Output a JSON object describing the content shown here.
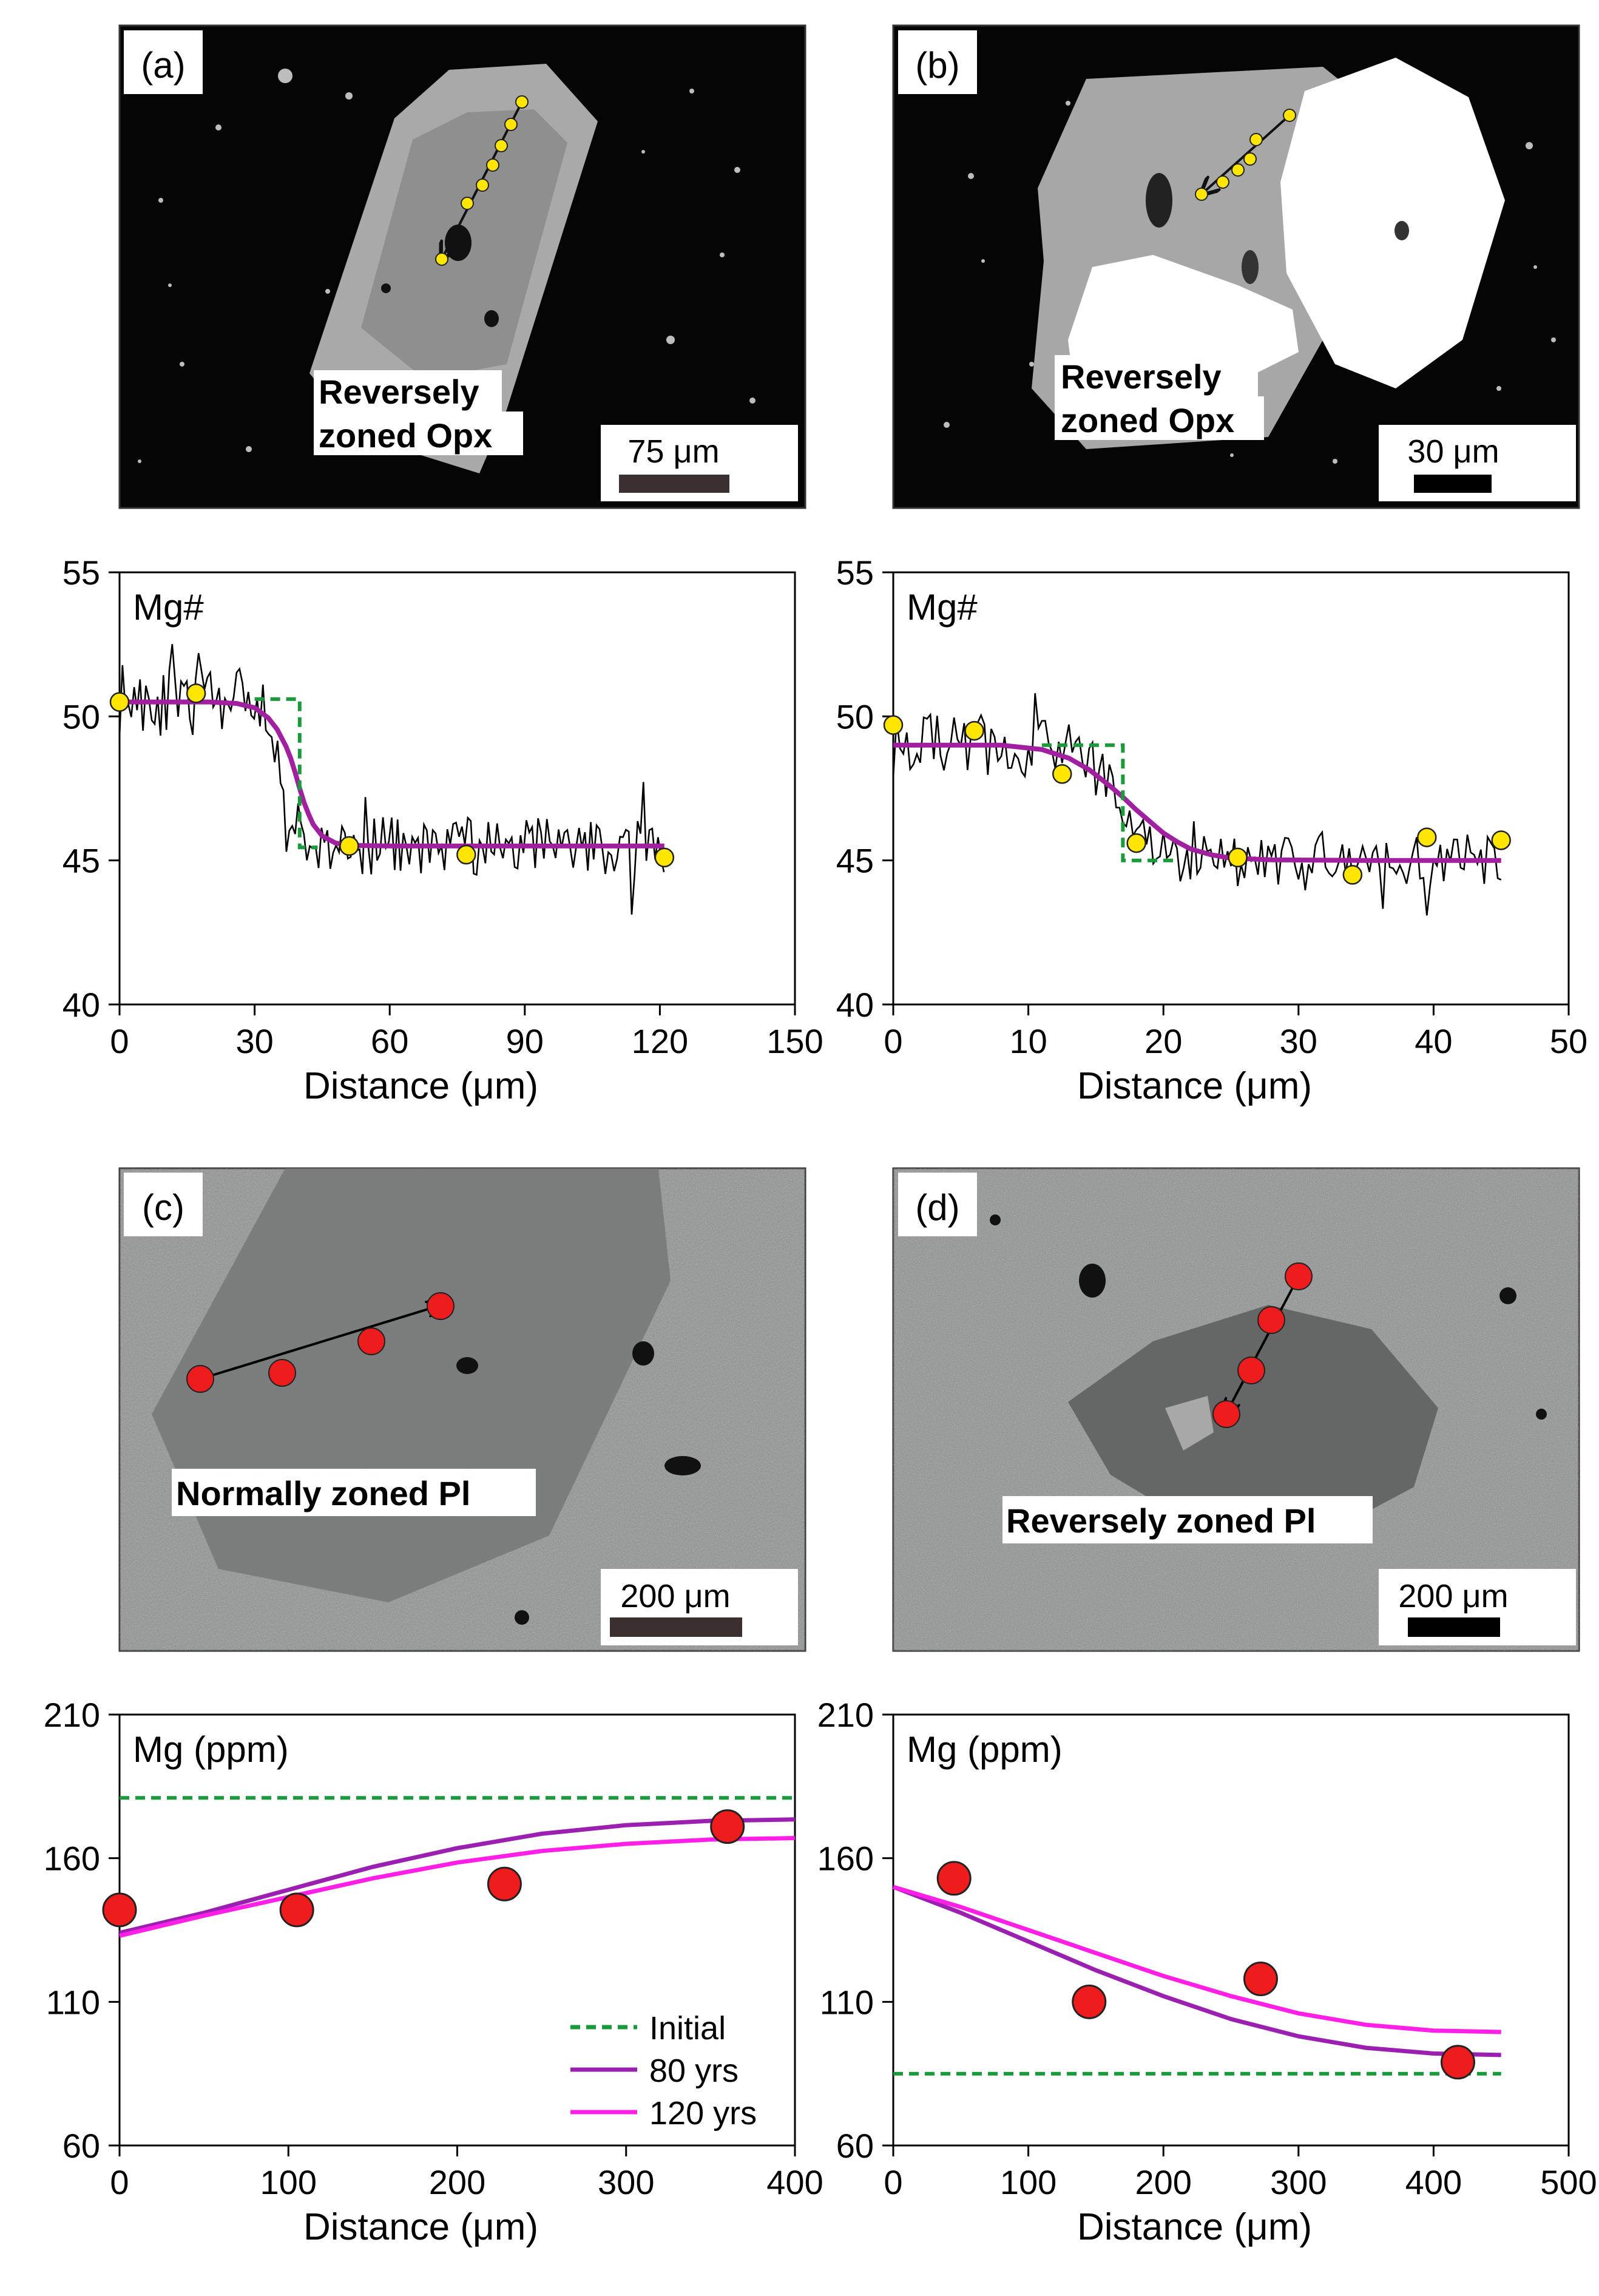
{
  "panels": {
    "a": {
      "letter": "(a)",
      "caption": [
        "Reversely",
        "zoned Opx"
      ],
      "scale": "75 μm"
    },
    "b": {
      "letter": "(b)",
      "caption": [
        "Reversely",
        "zoned Opx"
      ],
      "scale": "30 μm"
    },
    "c": {
      "letter": "(c)",
      "caption": [
        "Normally zoned Pl"
      ],
      "scale": "200 μm"
    },
    "d": {
      "letter": "(d)",
      "caption": [
        "Reversely zoned Pl"
      ],
      "scale": "200 μm"
    }
  },
  "colors": {
    "profile_line": "#000000",
    "fit_magenta": "#a020a0",
    "initial_green": "#1a9a3a",
    "model_80": "#9b1fb0",
    "model_120": "#ff1fe6",
    "point_yellow": "#ffe600",
    "point_red": "#ee1c1c"
  },
  "chart_data": [
    {
      "id": "opx-a",
      "type": "line",
      "title": "Mg#",
      "xlabel": "Distance (μm)",
      "ylabel": "",
      "xlim": [
        0,
        150
      ],
      "ylim": [
        40,
        55
      ],
      "xticks": [
        0,
        30,
        60,
        90,
        120,
        150
      ],
      "yticks": [
        40,
        45,
        50,
        55
      ],
      "grid": false,
      "noise": {
        "x_end": 121,
        "step": 0.65,
        "seed": 11,
        "transition": [
          30,
          42
        ],
        "low_amp": 1.2,
        "high_amp": 1.0,
        "high": 50.5,
        "low": 45.5
      },
      "series": [
        {
          "role": "fit",
          "x": [
            0,
            20,
            26,
            30,
            33,
            35,
            37,
            38,
            39,
            40,
            41,
            42,
            43,
            45,
            48,
            52,
            60,
            80,
            100,
            121
          ],
          "y": [
            50.5,
            50.5,
            50.45,
            50.3,
            49.95,
            49.55,
            48.95,
            48.55,
            48.05,
            47.5,
            47.0,
            46.6,
            46.25,
            45.85,
            45.6,
            45.52,
            45.5,
            45.5,
            45.5,
            45.5
          ]
        },
        {
          "role": "initial",
          "x": [
            30,
            40,
            40,
            44
          ],
          "y": [
            50.6,
            50.6,
            45.45,
            45.45
          ]
        },
        {
          "role": "points",
          "x": [
            0,
            17,
            51,
            77,
            121
          ],
          "y": [
            50.5,
            50.8,
            45.5,
            45.2,
            45.1
          ]
        }
      ]
    },
    {
      "id": "opx-b",
      "type": "line",
      "title": "Mg#",
      "xlabel": "Distance (μm)",
      "ylabel": "",
      "xlim": [
        0,
        50
      ],
      "ylim": [
        40,
        55
      ],
      "xticks": [
        0,
        10,
        20,
        30,
        40,
        50
      ],
      "yticks": [
        40,
        45,
        50,
        55
      ],
      "grid": false,
      "noise": {
        "x_end": 45,
        "step": 0.25,
        "seed": 29,
        "transition": [
          12,
          22
        ],
        "low_amp": 1.1,
        "high_amp": 0.9,
        "high": 49,
        "low": 45
      },
      "series": [
        {
          "role": "fit",
          "x": [
            0,
            8,
            11,
            13,
            14.5,
            16,
            17,
            18,
            19,
            20,
            21,
            22,
            23.5,
            25,
            28,
            35,
            45
          ],
          "y": [
            49.0,
            49.0,
            48.85,
            48.55,
            48.15,
            47.6,
            47.2,
            46.75,
            46.35,
            45.95,
            45.65,
            45.4,
            45.2,
            45.08,
            45.02,
            45.0,
            45.0
          ]
        },
        {
          "role": "initial",
          "x": [
            11,
            17,
            17,
            21
          ],
          "y": [
            49.0,
            49.0,
            45.0,
            45.0
          ]
        },
        {
          "role": "points",
          "x": [
            0,
            6,
            12.5,
            18,
            25.5,
            34,
            39.5,
            45
          ],
          "y": [
            49.7,
            49.5,
            48,
            45.6,
            45.1,
            44.5,
            45.8,
            45.7
          ]
        }
      ]
    },
    {
      "id": "pl-c",
      "type": "line",
      "title": "Mg (ppm)",
      "xlabel": "Distance (μm)",
      "ylabel": "",
      "xlim": [
        0,
        400
      ],
      "ylim": [
        60,
        210
      ],
      "xticks": [
        0,
        100,
        200,
        300,
        400
      ],
      "yticks": [
        60,
        110,
        160,
        210
      ],
      "grid": false,
      "legend": {
        "position": "bottom-right",
        "entries": [
          "Initial",
          "80 yrs",
          "120 yrs"
        ]
      },
      "series": [
        {
          "name": "Initial",
          "role": "initial",
          "x": [
            0,
            400
          ],
          "y": [
            181,
            181
          ]
        },
        {
          "name": "80 yrs",
          "role": "model80",
          "x": [
            0,
            50,
            100,
            150,
            200,
            250,
            300,
            350,
            400
          ],
          "y": [
            134,
            141,
            149,
            157,
            163.5,
            168.5,
            171.5,
            173,
            173.5
          ]
        },
        {
          "name": "120 yrs",
          "role": "model120",
          "x": [
            0,
            50,
            100,
            150,
            200,
            250,
            300,
            350,
            400
          ],
          "y": [
            133,
            140,
            146.5,
            153,
            158.5,
            162.5,
            165,
            166.5,
            167
          ]
        },
        {
          "role": "points",
          "x": [
            0,
            105,
            228,
            360
          ],
          "y": [
            142,
            142,
            151,
            171
          ]
        }
      ]
    },
    {
      "id": "pl-d",
      "type": "line",
      "title": "Mg (ppm)",
      "xlabel": "Distance (μm)",
      "ylabel": "",
      "xlim": [
        0,
        500
      ],
      "ylim": [
        60,
        210
      ],
      "xticks": [
        0,
        100,
        200,
        300,
        400,
        500
      ],
      "yticks": [
        60,
        110,
        160,
        210
      ],
      "grid": false,
      "series": [
        {
          "role": "initial",
          "x": [
            0,
            450
          ],
          "y": [
            85,
            85
          ]
        },
        {
          "role": "model80",
          "x": [
            0,
            50,
            100,
            150,
            200,
            250,
            300,
            350,
            400,
            450
          ],
          "y": [
            150,
            141,
            131,
            121,
            112,
            104,
            98,
            94,
            92,
            91.5
          ]
        },
        {
          "role": "model120",
          "x": [
            0,
            50,
            100,
            150,
            200,
            250,
            300,
            350,
            400,
            450
          ],
          "y": [
            150,
            143,
            135,
            127,
            119,
            112,
            106,
            102,
            100,
            99.5
          ]
        },
        {
          "role": "points",
          "x": [
            45,
            145,
            272,
            418
          ],
          "y": [
            153,
            110,
            118,
            89
          ]
        }
      ]
    }
  ]
}
